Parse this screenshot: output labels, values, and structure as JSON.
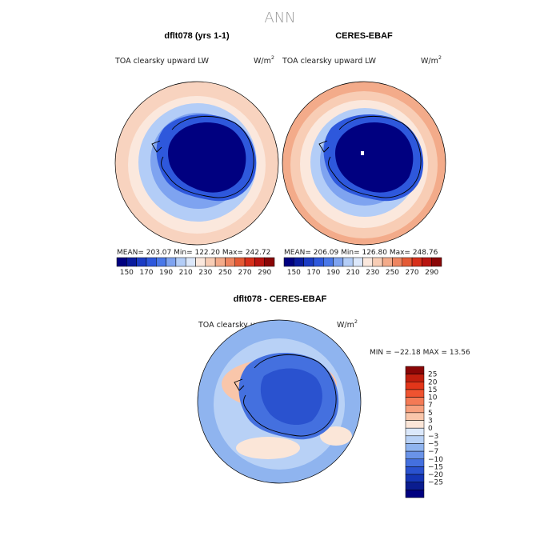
{
  "chart_data": {
    "type": "heatmap",
    "title": "ANN",
    "panels": [
      {
        "id": "model",
        "title": "dflt078 (yrs 1-1)",
        "variable": "TOA clearsky upward LW",
        "units_base": "W/m",
        "units_exp": "2",
        "stats": {
          "mean": "203.07",
          "min": "122.20",
          "max": "242.72"
        },
        "stats_text": "MEAN= 203.07   Min= 122.20   Max= 242.72"
      },
      {
        "id": "obs",
        "title": "CERES-EBAF",
        "variable": "TOA clearsky upward LW",
        "units_base": "W/m",
        "units_exp": "2",
        "stats": {
          "mean": "206.09",
          "min": "126.80",
          "max": "248.76"
        },
        "stats_text": "MEAN= 206.09   Min= 126.80   Max= 248.76"
      },
      {
        "id": "diff",
        "title": "dflt078 - CERES-EBAF",
        "variable": "TOA clearsky upward LW",
        "units_base": "W/m",
        "units_exp": "2",
        "stats": {
          "min": "-22.18",
          "max": "13.56"
        },
        "stats_text": "MIN = −22.18 MAX =  13.56"
      }
    ],
    "abs_colorbar": {
      "ticks": [
        "150",
        "170",
        "190",
        "210",
        "230",
        "250",
        "270",
        "290"
      ],
      "colors": [
        "#000080",
        "#0a1c9e",
        "#1b3cc4",
        "#2e58dc",
        "#4a78e8",
        "#7ea3f0",
        "#b3cdf7",
        "#dce8fb",
        "#fbe8dd",
        "#f8cdb5",
        "#f3ab8a",
        "#ee8560",
        "#e45a35",
        "#d7301b",
        "#b81410",
        "#8a0606"
      ]
    },
    "diff_colorbar": {
      "levels": [
        "25",
        "20",
        "15",
        "10",
        "7",
        "5",
        "3",
        "0",
        "−3",
        "−5",
        "−7",
        "−10",
        "−15",
        "−20",
        "−25"
      ],
      "colors": [
        "#8a0606",
        "#c01e0e",
        "#e2361a",
        "#ef5330",
        "#f47a55",
        "#f7a07d",
        "#f9c6aa",
        "#fbe6d8",
        "#dbe8fb",
        "#b8d1f6",
        "#8fb4ef",
        "#6a93e8",
        "#4470df",
        "#2a52cf",
        "#1535b5",
        "#0a1c8f",
        "#000080"
      ]
    }
  }
}
